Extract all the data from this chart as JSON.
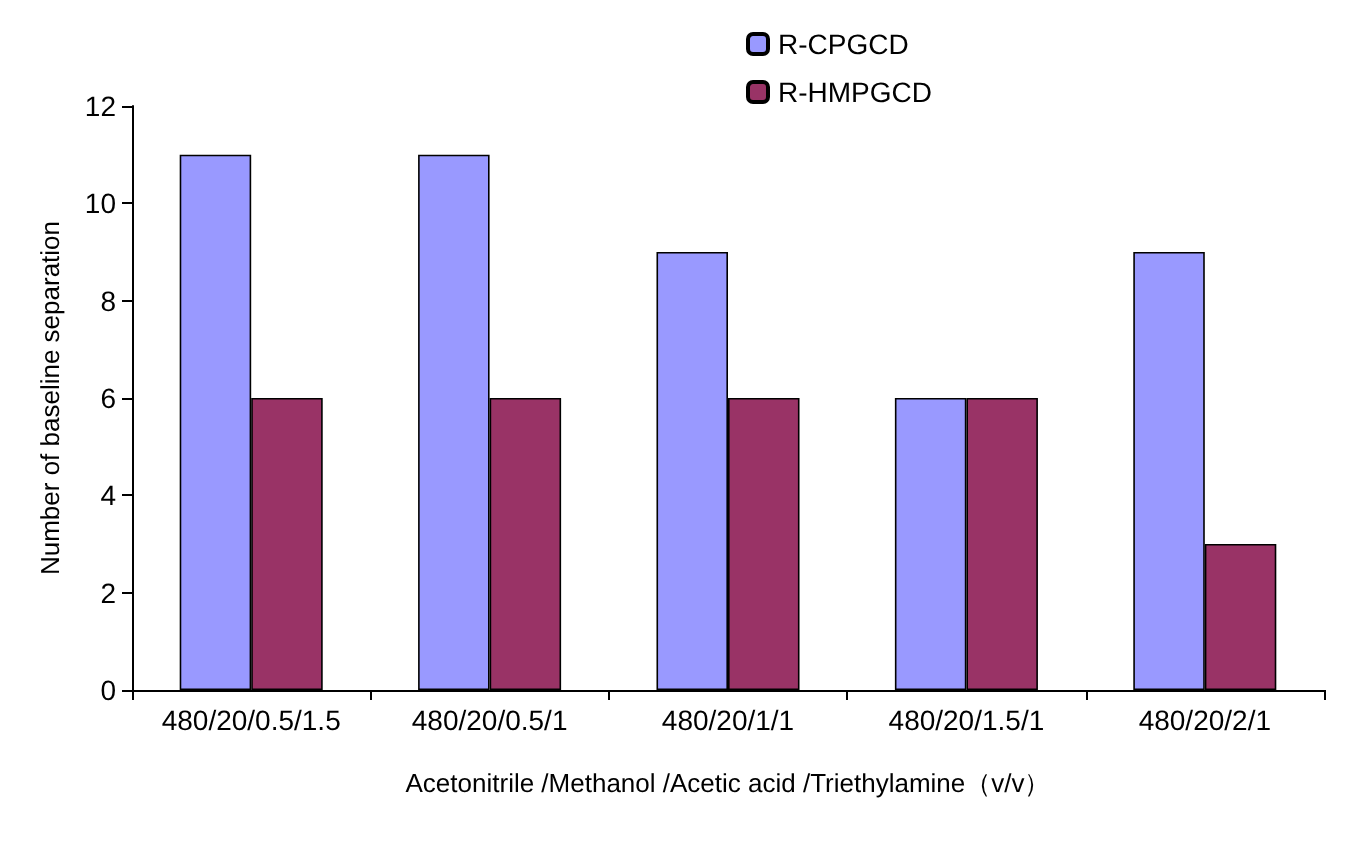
{
  "chart_data": {
    "type": "bar",
    "xlabel": "Acetonitrile /Methanol /Acetic acid /Triethylamine（v/v）",
    "ylabel": "Number of baseline separation",
    "categories": [
      "480/20/0.5/1.5",
      "480/20/0.5/1",
      "480/20/1/1",
      "480/20/1.5/1",
      "480/20/2/1"
    ],
    "series": [
      {
        "name": "R-CPGCD",
        "color": "#9999ff",
        "values": [
          11,
          11,
          9,
          6,
          9
        ]
      },
      {
        "name": "R-HMPGCD",
        "color": "#993366",
        "values": [
          6,
          6,
          6,
          6,
          3
        ]
      }
    ],
    "ylim": [
      0,
      12
    ],
    "yticks": [
      0,
      2,
      4,
      6,
      8,
      10,
      12
    ],
    "grid": false,
    "legend": "top"
  }
}
